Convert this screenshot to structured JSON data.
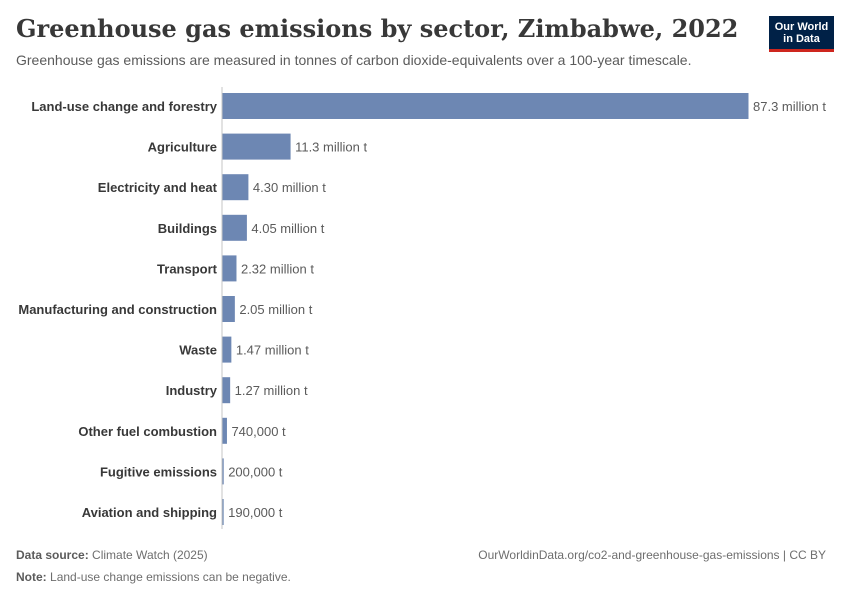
{
  "header": {
    "title": "Greenhouse gas emissions by sector, Zimbabwe, 2022",
    "subtitle": "Greenhouse gas emissions are measured in tonnes of carbon dioxide-equivalents over a 100-year timescale.",
    "logo_line1": "Our World",
    "logo_line2": "in Data"
  },
  "footer": {
    "source_label": "Data source:",
    "source_value": "Climate Watch (2025)",
    "note_label": "Note:",
    "note_value": "Land-use change emissions can be negative.",
    "url": "OurWorldinData.org/co2-and-greenhouse-gas-emissions | CC BY"
  },
  "colors": {
    "bar": "#6d87b3",
    "axis": "#c4c4c4",
    "label": "#383838",
    "value": "#5b5b5b"
  },
  "chart_data": {
    "type": "bar",
    "orientation": "horizontal",
    "unit": "tonnes",
    "categories": [
      "Land-use change and forestry",
      "Agriculture",
      "Electricity and heat",
      "Buildings",
      "Transport",
      "Manufacturing and construction",
      "Waste",
      "Industry",
      "Other fuel combustion",
      "Fugitive emissions",
      "Aviation and shipping"
    ],
    "values": [
      87300000,
      11300000,
      4300000,
      4050000,
      2320000,
      2050000,
      1470000,
      1270000,
      740000,
      200000,
      190000
    ],
    "value_labels": [
      "87.3 million t",
      "11.3 million t",
      "4.30 million t",
      "4.05 million t",
      "2.32 million t",
      "2.05 million t",
      "1.47 million t",
      "1.27 million t",
      "740,000 t",
      "200,000 t",
      "190,000 t"
    ]
  }
}
